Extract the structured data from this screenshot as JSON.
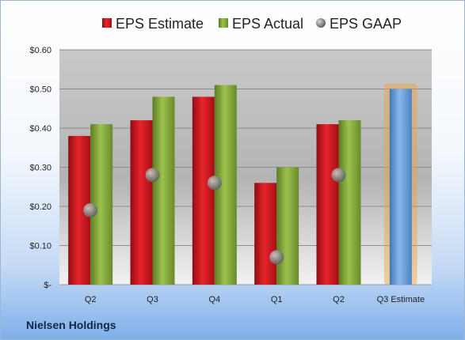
{
  "company": "Nielsen Holdings",
  "chart_data": {
    "type": "bar",
    "categories": [
      "Q2",
      "Q3",
      "Q4",
      "Q1",
      "Q2",
      "Q3 Estimate"
    ],
    "series": [
      {
        "name": "EPS Estimate",
        "values": [
          0.38,
          0.42,
          0.48,
          0.26,
          0.41,
          null
        ],
        "color": "#c8141b"
      },
      {
        "name": "EPS Actual",
        "values": [
          0.41,
          0.48,
          0.51,
          0.3,
          0.42,
          null
        ],
        "color": "#7ea33a"
      },
      {
        "name": "EPS GAAP",
        "values": [
          0.19,
          0.28,
          0.26,
          0.07,
          0.28,
          null
        ],
        "color": "#8a8a8a",
        "marker": "circle"
      }
    ],
    "estimate": {
      "category_index": 5,
      "value": 0.5,
      "color": "#5b9bd5",
      "highlight": "#f0a040"
    },
    "ylim": [
      0,
      0.6
    ],
    "yticks": [
      0,
      0.1,
      0.2,
      0.3,
      0.4,
      0.5,
      0.6
    ],
    "ytick_labels": [
      "$-",
      "$0.10",
      "$0.20",
      "$0.30",
      "$0.40",
      "$0.50",
      "$0.60"
    ],
    "legend": [
      "EPS Estimate",
      "EPS Actual",
      "EPS GAAP"
    ],
    "legend_position": "top",
    "grid": true
  }
}
